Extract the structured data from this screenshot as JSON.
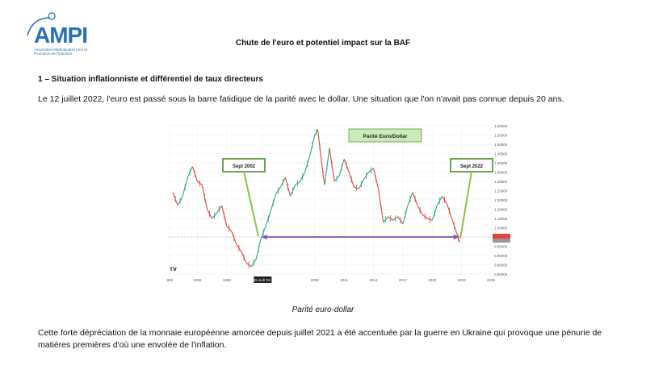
{
  "logo": {
    "name": "AMPI",
    "subtitle": "Association Martiniquaise pour la Promotion de l'Industrie"
  },
  "header": {
    "title": "Chute de l'euro et potentiel impact sur la BAF"
  },
  "section": {
    "title": "1 – Situation inflationniste et différentiel de taux directeurs",
    "intro": "Le 12 juillet 2022, l'euro est passé sous la barre fatidique de la parité avec le dollar. Une situation que l'on n'avait pas connue depuis 20 ans."
  },
  "chart_data": {
    "type": "line",
    "title": "Parité Euro/Dollar",
    "annotations": [
      "Sept 2002",
      "Sept 2022"
    ],
    "x_ticks": [
      "993",
      "1996",
      "1999",
      "25 Juill '02",
      "2008",
      "2011",
      "2014",
      "2017",
      "2020",
      "2023",
      "2026"
    ],
    "y_ticks": [
      "1.60000",
      "1.55000",
      "1.50000",
      "1.45000",
      "1.40000",
      "1.35000",
      "1.30000",
      "1.25000",
      "1.20000",
      "1.15000",
      "1.10000",
      "1.05000",
      "1.00000",
      "0.95000",
      "0.90000",
      "0.85000",
      "0.80000"
    ],
    "ylim": [
      0.8,
      1.6
    ],
    "current_label": "0.9xxxx",
    "parity_line": 1.0,
    "series": [
      {
        "x": [
          1993.5,
          1994,
          1994.5,
          1995,
          1995.5,
          1996,
          1996.5,
          1997,
          1997.5,
          1998,
          1998.5,
          1999,
          1999.5,
          2000,
          2000.5,
          2001,
          2001.5,
          2002,
          2002.5,
          2003,
          2003.5,
          2004,
          2004.5,
          2005,
          2005.5,
          2006,
          2006.5,
          2007,
          2007.5,
          2008,
          2008.3,
          2008.7,
          2009,
          2009.5,
          2010,
          2010.5,
          2011,
          2011.5,
          2012,
          2012.5,
          2013,
          2013.5,
          2014,
          2014.5,
          2015,
          2015.5,
          2016,
          2016.5,
          2017,
          2017.5,
          2018,
          2018.5,
          2019,
          2019.5,
          2020,
          2020.5,
          2021,
          2021.5,
          2022,
          2022.5,
          2022.8
        ],
        "values": [
          1.24,
          1.17,
          1.22,
          1.32,
          1.38,
          1.3,
          1.28,
          1.15,
          1.1,
          1.13,
          1.17,
          1.06,
          1.03,
          0.96,
          0.92,
          0.86,
          0.84,
          0.88,
          0.99,
          1.06,
          1.14,
          1.23,
          1.27,
          1.32,
          1.22,
          1.28,
          1.3,
          1.35,
          1.44,
          1.55,
          1.58,
          1.4,
          1.28,
          1.48,
          1.3,
          1.33,
          1.42,
          1.35,
          1.27,
          1.26,
          1.31,
          1.35,
          1.37,
          1.26,
          1.08,
          1.11,
          1.09,
          1.11,
          1.07,
          1.17,
          1.24,
          1.17,
          1.12,
          1.1,
          1.09,
          1.17,
          1.22,
          1.18,
          1.1,
          1.02,
          0.97
        ]
      }
    ]
  },
  "figure": {
    "caption": "Parité euro-dollar"
  },
  "body": {
    "paragraph": "Cette forte dépréciation de la monnaie européenne amorcée depuis juillet 2021 a été accentuée par la guerre en Ukraine qui provoque une pénurie de matières premières d'où une envolée de l'inflation."
  }
}
